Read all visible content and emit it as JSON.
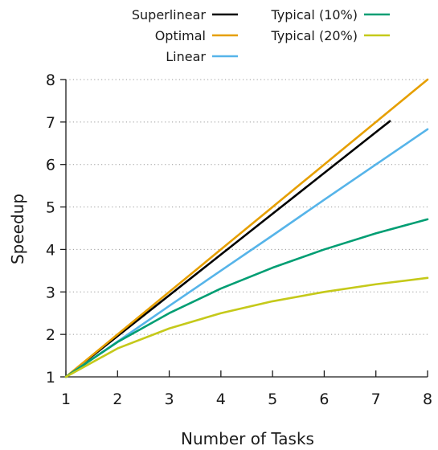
{
  "chart_data": {
    "type": "line",
    "title": "",
    "xlabel": "Number of Tasks",
    "ylabel": "Speedup",
    "xlim": [
      1,
      8
    ],
    "ylim": [
      1,
      8
    ],
    "x_ticks": [
      1,
      2,
      3,
      4,
      5,
      6,
      7,
      8
    ],
    "y_ticks": [
      1,
      2,
      3,
      4,
      5,
      6,
      7,
      8
    ],
    "grid": "horizontal dotted",
    "legend_position": "top",
    "series": [
      {
        "name": "Superlinear",
        "color": "#000000",
        "x": [
          1,
          2,
          3,
          4,
          5,
          6,
          7,
          7.27
        ],
        "y": [
          1,
          1.96,
          2.92,
          3.88,
          4.84,
          5.8,
          6.76,
          7.02
        ]
      },
      {
        "name": "Optimal",
        "color": "#e69f00",
        "x": [
          1,
          2,
          3,
          4,
          5,
          6,
          7,
          8
        ],
        "y": [
          1,
          2,
          3,
          4,
          5,
          6,
          7,
          8
        ]
      },
      {
        "name": "Linear",
        "color": "#56b4e9",
        "x": [
          1,
          2,
          3,
          4,
          5,
          6,
          7,
          8
        ],
        "y": [
          1,
          1.83,
          2.67,
          3.5,
          4.33,
          5.17,
          6.0,
          6.83
        ]
      },
      {
        "name": "Typical (10%)",
        "color": "#009e73",
        "x": [
          1,
          2,
          3,
          4,
          5,
          6,
          7,
          8
        ],
        "y": [
          1,
          1.82,
          2.5,
          3.08,
          3.57,
          4.0,
          4.38,
          4.71
        ]
      },
      {
        "name": "Typical (20%)",
        "color": "#c5c91a",
        "x": [
          1,
          2,
          3,
          4,
          5,
          6,
          7,
          8
        ],
        "y": [
          1,
          1.67,
          2.14,
          2.5,
          2.78,
          3.0,
          3.18,
          3.33
        ]
      }
    ]
  }
}
